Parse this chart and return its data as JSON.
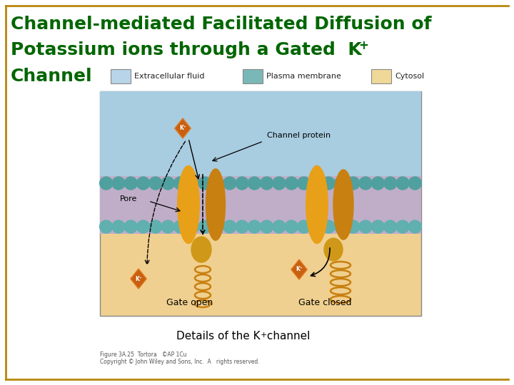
{
  "title_line1": "Channel-mediated Facilitated Diffusion of",
  "title_line2": "Potassium ions through a Gated  K",
  "title_superscript": "+",
  "title_line3": "Channel",
  "title_color": "#006600",
  "title_fontsize": 18,
  "bg_color": "#ffffff",
  "border_color": "#b8860b",
  "legend_items": [
    {
      "label": "Extracellular fluid",
      "color": "#b8d4e8"
    },
    {
      "label": "Plasma membrane",
      "color": "#7ab8b8"
    },
    {
      "label": "Cytosol",
      "color": "#f0d898"
    }
  ],
  "caption": "Details of the K",
  "caption_superscript": "+",
  "caption_suffix": " channel",
  "caption_fontsize": 11,
  "footnote_line1": "Figure 3A.25  Tortora   ©AP 1Cu",
  "footnote_line2": "Copyright © John Wiley and Sons, Inc.  A   rights reserved.",
  "footnote_fontsize": 5.5,
  "ecf_color": "#a8cce0",
  "membrane_color": "#7ab8b8",
  "bilayer_color": "#c0aec8",
  "cytosol_color": "#f0d090",
  "protein_color": "#e8a018",
  "protein_dark": "#c88010",
  "gate_color": "#d09818",
  "ion_color": "#c86010",
  "ion_edge_color": "#e07820",
  "circle_color": "#50a0a0",
  "circle_color2": "#60b0b0"
}
